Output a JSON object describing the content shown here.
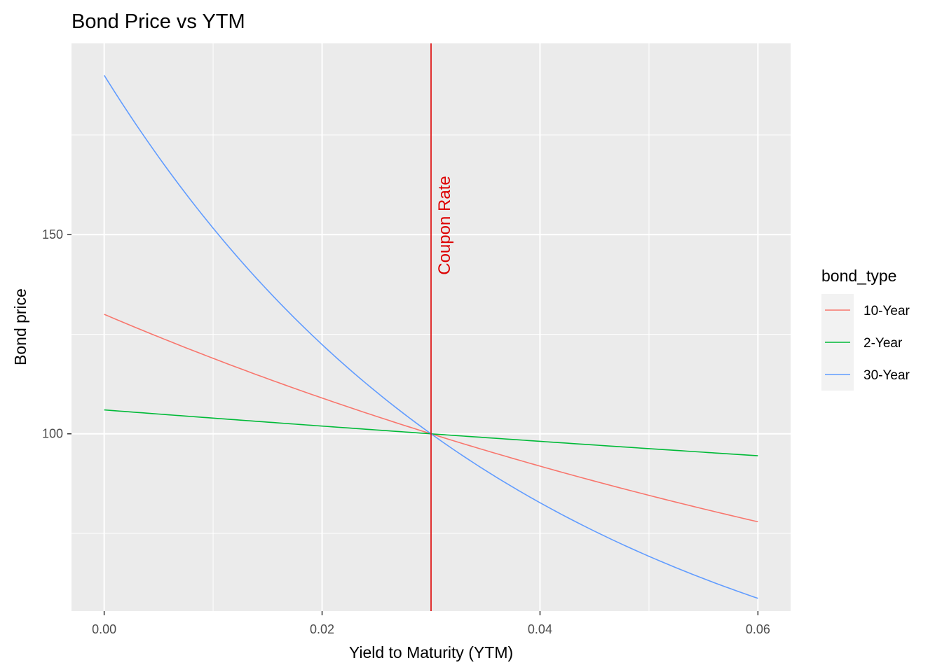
{
  "chart_data": {
    "type": "line",
    "title": "Bond Price vs YTM",
    "xlabel": "Yield to Maturity (YTM)",
    "ylabel": "Bond price",
    "xlim": [
      -0.003,
      0.063
    ],
    "ylim": [
      55.5,
      198
    ],
    "x_ticks": [
      0.0,
      0.02,
      0.04,
      0.06
    ],
    "x_tick_labels": [
      "0.00",
      "0.02",
      "0.04",
      "0.06"
    ],
    "x_minor_ticks": [
      0.01,
      0.03,
      0.05
    ],
    "y_ticks": [
      100,
      150
    ],
    "y_tick_labels": [
      "100",
      "150"
    ],
    "y_minor_ticks": [
      75,
      125,
      175
    ],
    "grid": true,
    "legend": {
      "title": "bond_type",
      "position": "right"
    },
    "series": [
      {
        "name": "10-Year",
        "color": "#F8766D",
        "coupon": 0.03,
        "years": 10,
        "face": 100
      },
      {
        "name": "2-Year",
        "color": "#00BA38",
        "coupon": 0.03,
        "years": 2,
        "face": 100
      },
      {
        "name": "30-Year",
        "color": "#619CFF",
        "coupon": 0.03,
        "years": 30,
        "face": 100
      }
    ],
    "x_range": [
      0.0,
      0.06
    ],
    "vline": {
      "x": 0.03,
      "label": "Coupon Rate",
      "color": "#DD0000"
    }
  }
}
